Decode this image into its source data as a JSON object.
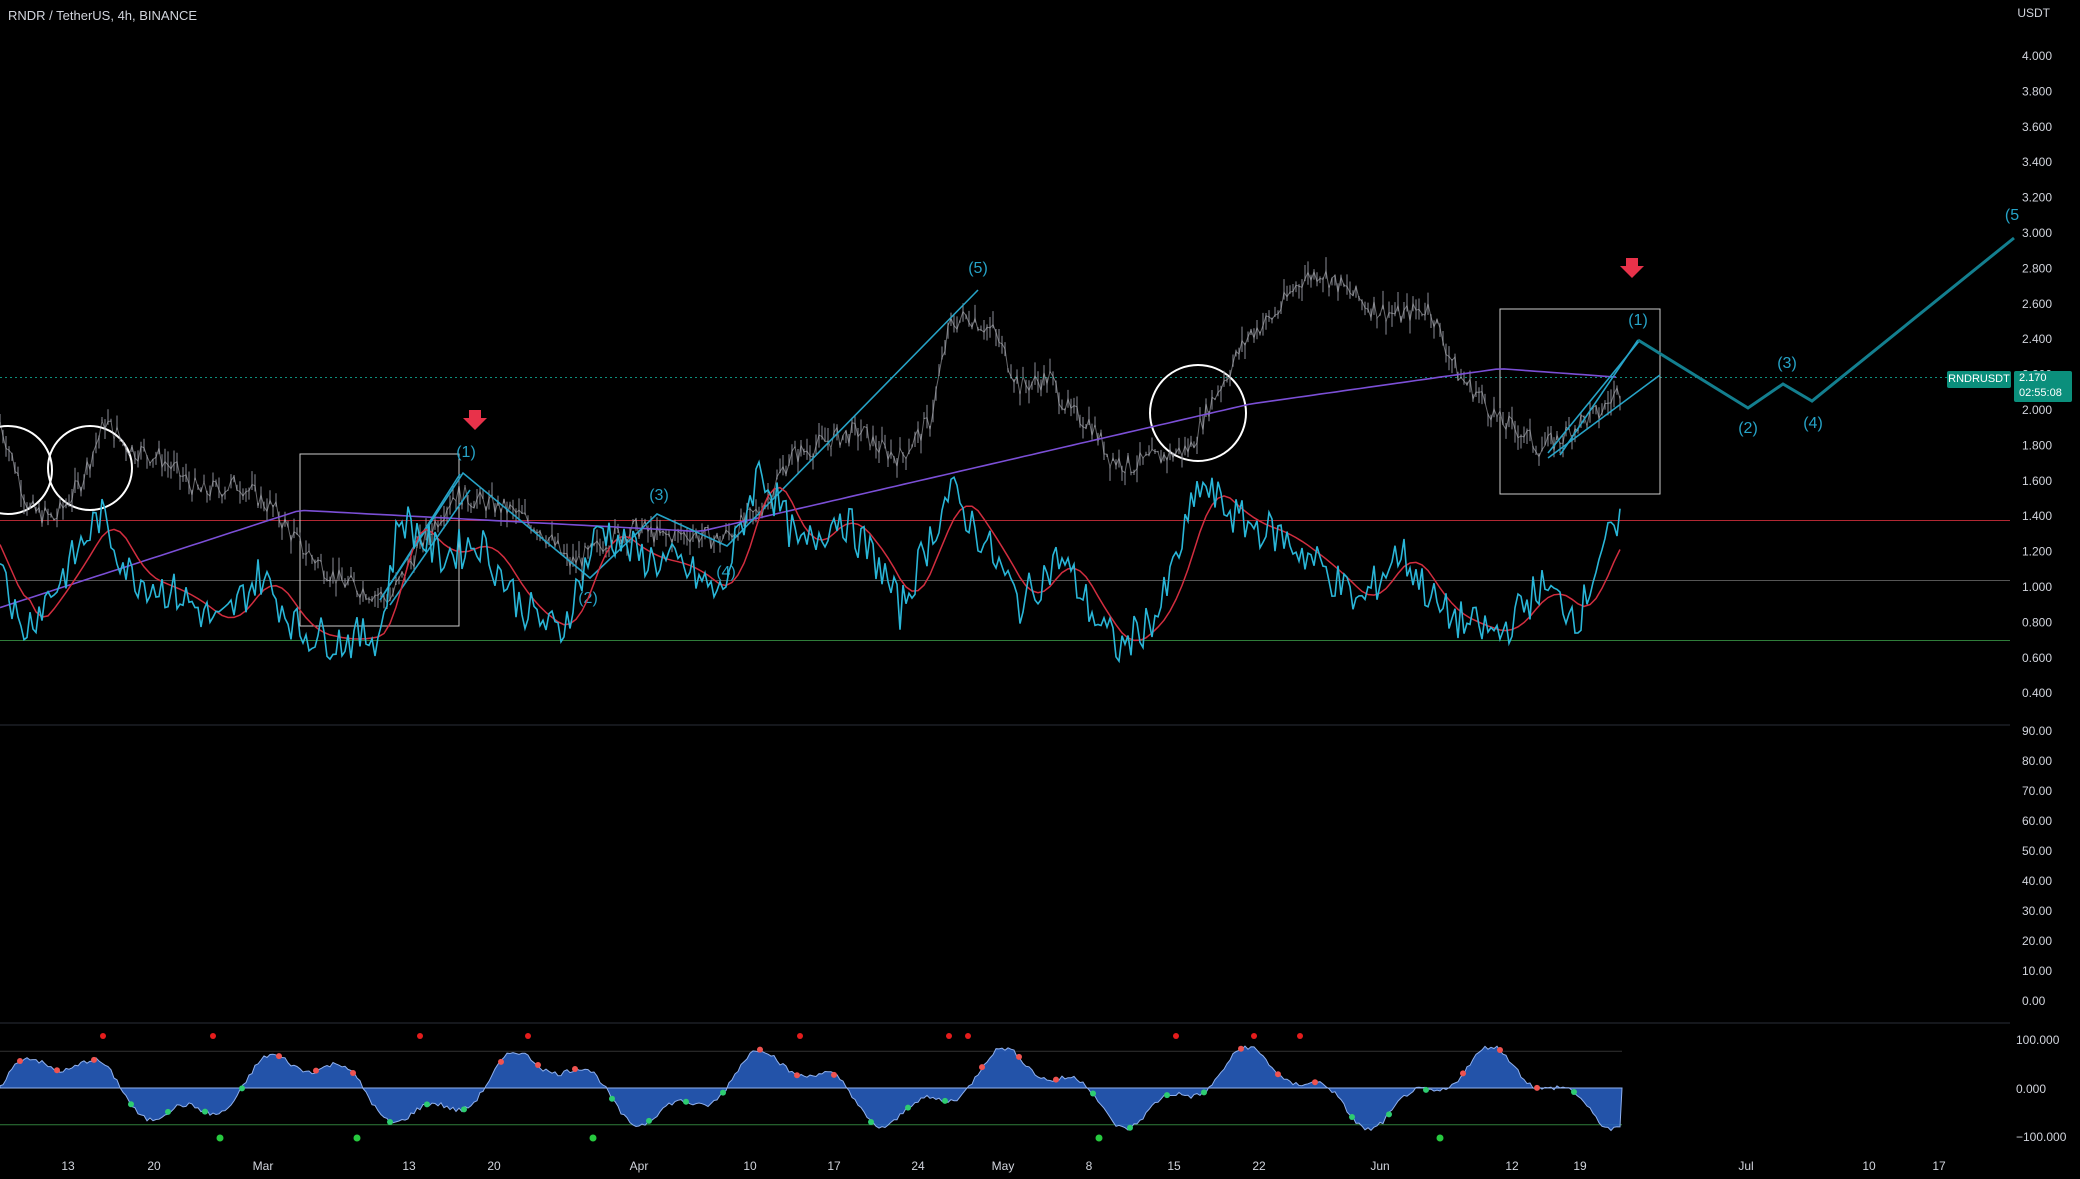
{
  "header": {
    "symbol": "RNDR / TetherUS, 4h, BINANCE",
    "currency": "USDT"
  },
  "price_axis": {
    "ticks": [
      "4.000",
      "3.800",
      "3.600",
      "3.400",
      "3.200",
      "3.000",
      "2.800",
      "2.600",
      "2.400",
      "2.200",
      "2.000",
      "1.800",
      "1.600",
      "1.400",
      "1.200",
      "1.000",
      "0.800",
      "0.600",
      "0.400"
    ]
  },
  "rsi_axis": {
    "ticks": [
      "90.00",
      "80.00",
      "70.00",
      "60.00",
      "50.00",
      "40.00",
      "30.00",
      "20.00",
      "10.00",
      "0.00"
    ]
  },
  "osc_axis": {
    "ticks": [
      "100.000",
      "0.000",
      "−100.000"
    ]
  },
  "time_axis": {
    "ticks": [
      "13",
      "20",
      "Mar",
      "13",
      "20",
      "Apr",
      "10",
      "17",
      "24",
      "May",
      "8",
      "15",
      "22",
      "Jun",
      "12",
      "19",
      "Jul",
      "10",
      "17"
    ]
  },
  "last_price": {
    "symbol": "RNDRUSDT",
    "value": "2.170",
    "countdown": "02:55:08"
  },
  "wave_labels": [
    "(1)",
    "(2)",
    "(3)",
    "(4)",
    "(5)",
    "(1)",
    "(2)",
    "(3)",
    "(4)",
    "(1)",
    "(5"
  ],
  "colors": {
    "price_line": "#d1d4dc",
    "wave": "#26a3c7",
    "projection": "#137f8f",
    "ema_fast": "#ffffff",
    "ema_mid": "#f5e663",
    "ema_slow": "#e0304f",
    "ema_long": "#7b4fd6",
    "rsi": "#29b6d8",
    "rsi_signal": "#d22d3f",
    "osc_fill": "#2962c7",
    "arrow": "#e8324a",
    "tag_bg": "#0b8f7c"
  }
}
